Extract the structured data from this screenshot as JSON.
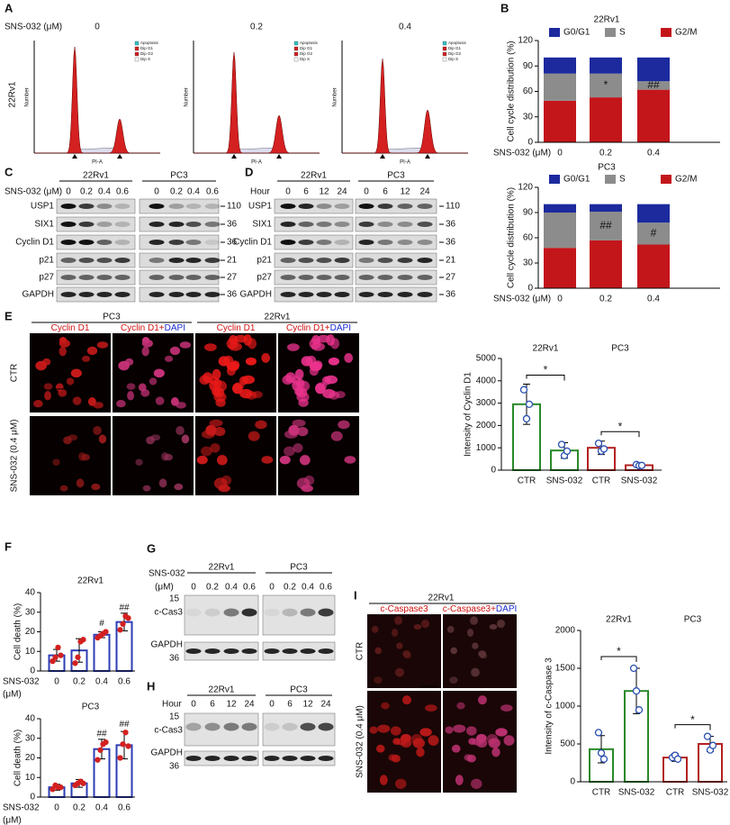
{
  "figure": {
    "panel_labels": [
      "A",
      "B",
      "C",
      "D",
      "E",
      "F",
      "G",
      "H",
      "I"
    ],
    "flow": {
      "treatment_label": "SNS-032 (μM)",
      "cell_line": "22Rv1",
      "doses": [
        "0",
        "0.2",
        "0.4"
      ],
      "legend": [
        "Apoptosis",
        "Dip G1",
        "Dip G2",
        "Dip S"
      ],
      "x_label": "PI-A",
      "y_label": "Number"
    },
    "blot_c": {
      "treatment_label": "SNS-032 (μM)",
      "cell_lines": [
        "22Rv1",
        "PC3"
      ],
      "lanes": [
        "0",
        "0.2",
        "0.4",
        "0.6"
      ],
      "proteins": [
        "USP1",
        "SIX1",
        "Cyclin D1",
        "p21",
        "p27",
        "GAPDH"
      ],
      "mw": [
        110,
        36,
        36,
        21,
        27,
        36
      ]
    },
    "blot_d": {
      "time_label": "Hour",
      "cell_lines": [
        "22Rv1",
        "PC3"
      ],
      "lanes": [
        "0",
        "6",
        "12",
        "24"
      ],
      "proteins": [
        "USP1",
        "SIX1",
        "Cyclin D1",
        "p21",
        "p27",
        "GAPDH"
      ],
      "mw": [
        110,
        36,
        36,
        21,
        27,
        36
      ]
    },
    "microscopy_e": {
      "cell_lines": [
        "PC3",
        "22Rv1"
      ],
      "stain": "Cyclin D1",
      "merge": "Cyclin D1+",
      "counterstain": "DAPI",
      "rows": [
        "CTR",
        "SNS-032 (0.4 μM)"
      ]
    },
    "blot_g": {
      "treatment_label": "SNS-032",
      "unit": "(μM)",
      "cell_lines": [
        "22Rv1",
        "PC3"
      ],
      "lanes": [
        "0",
        "0.2",
        "0.4",
        "0.6"
      ],
      "rows": [
        {
          "mw": 15,
          "protein": "c-Cas3"
        },
        {
          "protein": "GAPDH",
          "mw": 36
        }
      ]
    },
    "blot_h": {
      "time_label": "Hour",
      "cell_lines": [
        "22Rv1",
        "PC3"
      ],
      "lanes": [
        "0",
        "6",
        "12",
        "24"
      ],
      "rows": [
        {
          "mw": 15,
          "protein": "c-Cas3"
        },
        {
          "protein": "GAPDH",
          "mw": 36
        }
      ]
    },
    "microscopy_i": {
      "cell_line": "22Rv1",
      "stain": "c-Caspase3",
      "merge": "c-Caspase3+",
      "counterstain": "DAPI",
      "rows": [
        "CTR",
        "SNS-032 (0.4 μM)"
      ]
    }
  },
  "chart_data": [
    {
      "type": "stacked_bar",
      "title": "22Rv1",
      "y_label": "Cell cycle distribution (%)",
      "x_label": "SNS-032 (μM)",
      "categories": [
        "0",
        "0.2",
        "0.4"
      ],
      "ylim": [
        0,
        120
      ],
      "yticks": [
        0,
        30,
        60,
        90,
        120
      ],
      "series": [
        {
          "name": "G0/G1",
          "color": "#1c2a9e",
          "values": [
            19,
            19,
            28
          ]
        },
        {
          "name": "S",
          "color": "#8c8c8c",
          "values": [
            32,
            28,
            10
          ],
          "annotations": [
            null,
            "*",
            "##"
          ]
        },
        {
          "name": "G2/M",
          "color": "#c3161b",
          "values": [
            49,
            53,
            62
          ]
        }
      ]
    },
    {
      "type": "stacked_bar",
      "title": "PC3",
      "y_label": "Cell cycle distribution (%)",
      "x_label": "SNS-032 (μM)",
      "categories": [
        "0",
        "0.2",
        "0.4"
      ],
      "ylim": [
        0,
        120
      ],
      "yticks": [
        0,
        30,
        60,
        90,
        120
      ],
      "series": [
        {
          "name": "G0/G1",
          "color": "#1c2a9e",
          "values": [
            10,
            9,
            22
          ]
        },
        {
          "name": "S",
          "color": "#8c8c8c",
          "values": [
            42,
            34,
            26
          ],
          "annotations": [
            null,
            "##",
            "#"
          ]
        },
        {
          "name": "G2/M",
          "color": "#c3161b",
          "values": [
            48,
            57,
            52
          ]
        }
      ]
    },
    {
      "type": "bar",
      "y_label": "Intensity of Cyclin D1",
      "categories": [
        "CTR",
        "SNS-032",
        "CTR",
        "SNS-032"
      ],
      "groups": [
        {
          "name": "22Rv1",
          "significance": "*"
        },
        {
          "name": "PC3",
          "significance": "*"
        }
      ],
      "values": [
        2950,
        880,
        1000,
        220
      ],
      "errors": [
        900,
        350,
        300,
        80
      ],
      "points": [
        [
          3600,
          2300,
          2950
        ],
        [
          1150,
          650,
          850
        ],
        [
          1200,
          850,
          950
        ],
        [
          250,
          200,
          210
        ]
      ],
      "colors": [
        "#2a8a2a",
        "#2a8a2a",
        "#b42020",
        "#b42020"
      ],
      "point_color": "#2a4fb0",
      "point_filled": false,
      "ylim": [
        0,
        5000
      ],
      "yticks": [
        0,
        1000,
        2000,
        3000,
        4000,
        5000
      ]
    },
    {
      "type": "bar",
      "title": "22Rv1",
      "y_label": "Cell death (%)",
      "x_label": [
        "SNS-032",
        "(μM)"
      ],
      "categories": [
        "0",
        "0.2",
        "0.4",
        "0.6"
      ],
      "values": [
        8,
        10.5,
        18.5,
        25
      ],
      "errors": [
        3,
        6,
        1.5,
        4.5
      ],
      "points": [
        [
          5,
          7,
          12,
          8
        ],
        [
          4,
          7,
          15,
          16
        ],
        [
          17,
          18,
          19,
          20
        ],
        [
          21,
          24,
          28,
          27
        ]
      ],
      "annotations": [
        null,
        null,
        "#",
        "##"
      ],
      "color": "#2d3db5",
      "point_color": "#d42020",
      "point_filled": true,
      "ylim": [
        0,
        40
      ],
      "yticks": [
        0,
        10,
        20,
        30,
        40
      ]
    },
    {
      "type": "bar",
      "title": "PC3",
      "y_label": "Cell death (%)",
      "x_label": [
        "SNS-032",
        "(μM)"
      ],
      "categories": [
        "0",
        "0.2",
        "0.4",
        "0.6"
      ],
      "values": [
        5,
        7,
        24.5,
        26.5
      ],
      "errors": [
        1.5,
        2,
        5,
        7
      ],
      "points": [
        [
          4,
          6,
          5,
          5
        ],
        [
          6,
          7,
          8,
          7
        ],
        [
          19,
          24,
          27,
          28
        ],
        [
          20,
          27,
          33,
          26
        ]
      ],
      "annotations": [
        null,
        null,
        "##",
        "##"
      ],
      "color": "#2d3db5",
      "point_color": "#d42020",
      "point_filled": true,
      "ylim": [
        0,
        40
      ],
      "yticks": [
        0,
        10,
        20,
        30,
        40
      ]
    },
    {
      "type": "bar",
      "y_label": "Intensity of c-Caspase 3",
      "categories": [
        "CTR",
        "SNS-032",
        "CTR",
        "SNS-032"
      ],
      "groups": [
        {
          "name": "22Rv1",
          "significance": "*"
        },
        {
          "name": "PC3",
          "significance": "*"
        }
      ],
      "values": [
        430,
        1200,
        320,
        500
      ],
      "errors": [
        180,
        300,
        50,
        100
      ],
      "points": [
        [
          650,
          380,
          300
        ],
        [
          1500,
          1200,
          950
        ],
        [
          320,
          350,
          300
        ],
        [
          600,
          420,
          480
        ]
      ],
      "colors": [
        "#2a8a2a",
        "#2a8a2a",
        "#b42020",
        "#b42020"
      ],
      "point_color": "#2a4fb0",
      "point_filled": false,
      "ylim": [
        0,
        2000
      ],
      "yticks": [
        0,
        500,
        1000,
        1500,
        2000
      ]
    }
  ]
}
